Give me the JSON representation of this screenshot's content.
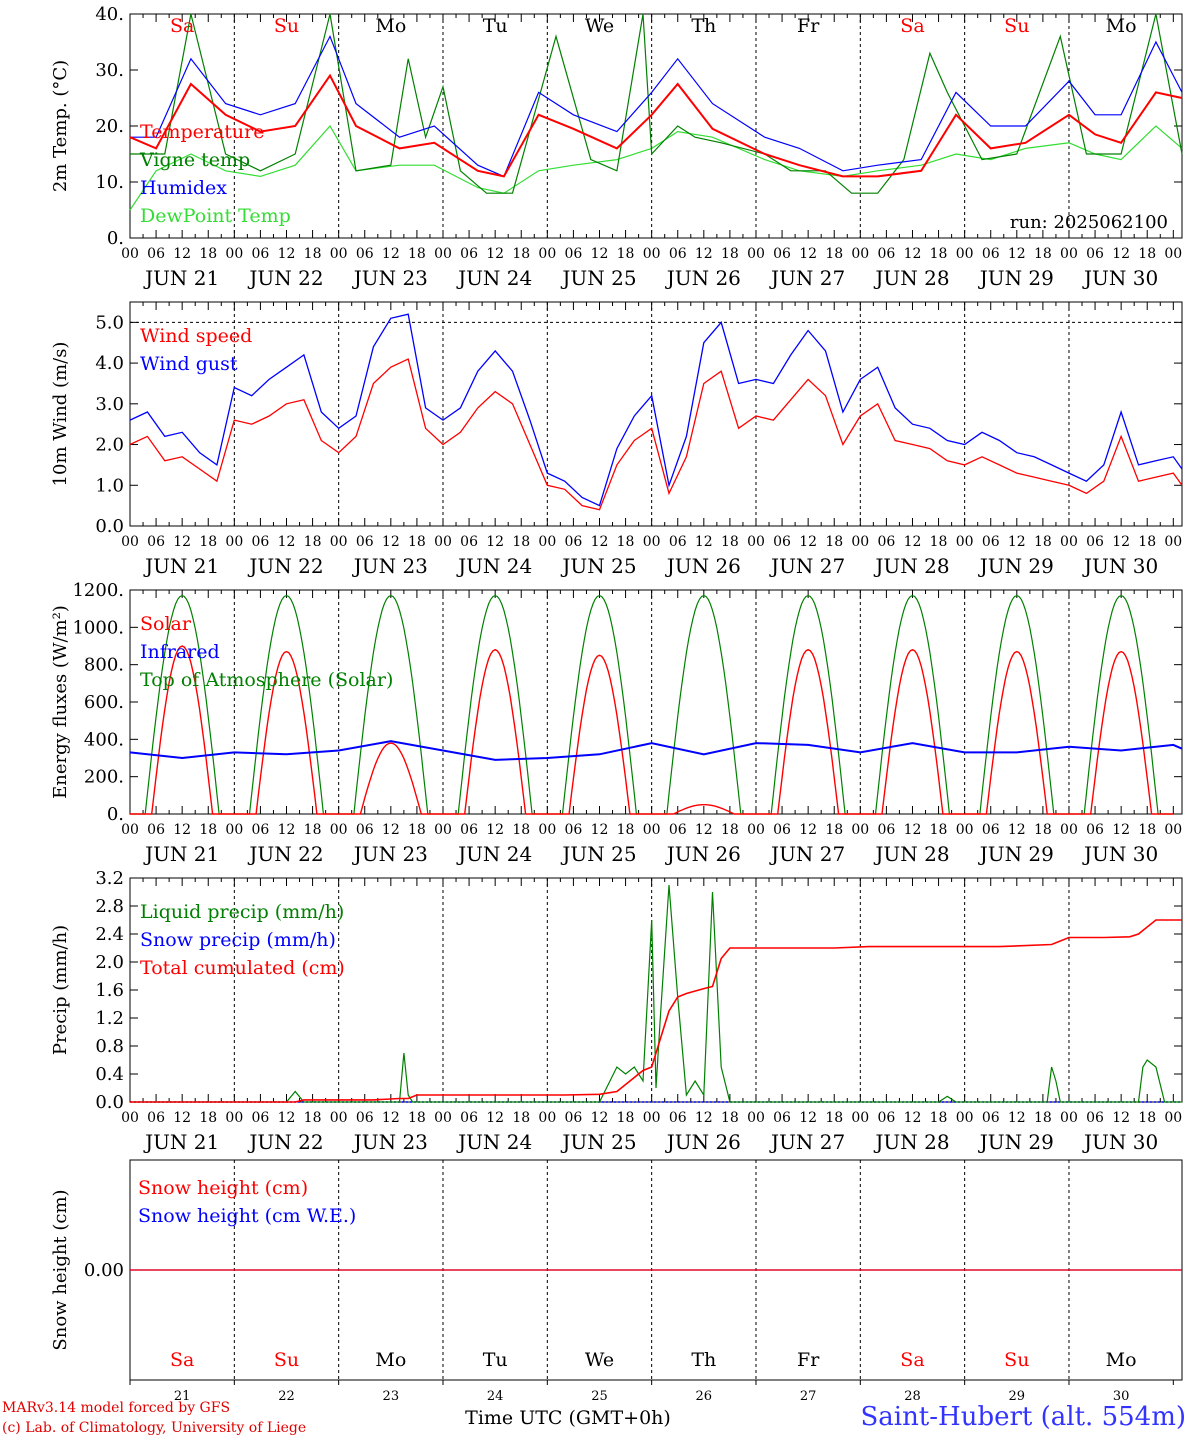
{
  "station": "Saint-Hubert (alt. 554m)",
  "credits": [
    "MARv3.14 model forced by GFS",
    "(c) Lab. of Climatology, University of Liege"
  ],
  "run_label": "run: 2025062100",
  "time_axis_label": "Time UTC (GMT+0h)",
  "hour_ticks": [
    "00",
    "06",
    "12",
    "18"
  ],
  "day_labels": [
    "JUN 21",
    "JUN 22",
    "JUN 23",
    "JUN 24",
    "JUN 25",
    "JUN 26",
    "JUN 27",
    "JUN 28",
    "JUN 29",
    "JUN 30"
  ],
  "weekdays": [
    "Sa",
    "Su",
    "Mo",
    "Tu",
    "We",
    "Th",
    "Fr",
    "Sa",
    "Su",
    "Mo"
  ],
  "day_numbers": [
    "21",
    "22",
    "23",
    "24",
    "25",
    "26",
    "27",
    "28",
    "29",
    "30"
  ],
  "colors": {
    "red": "#ff0000",
    "green": "#008000",
    "blue": "#0000ff",
    "lightgreen": "#33dd33",
    "weekend": "#ff0000",
    "weekday": "#000000"
  },
  "chart_data": [
    {
      "type": "line",
      "ylabel": "2m Temp. (°C)",
      "ylim": [
        0,
        40
      ],
      "yticks": [
        "0.",
        "10.",
        "20.",
        "30.",
        "40."
      ],
      "x_unit": "hours since JUN 21 00 UTC",
      "series": [
        {
          "name": "Temperature",
          "color": "red",
          "x": [
            0,
            6,
            14,
            22,
            30,
            38,
            46,
            52,
            62,
            70,
            80,
            86,
            94,
            102,
            112,
            120,
            126,
            134,
            146,
            154,
            164,
            172,
            182,
            190,
            198,
            206,
            216,
            222,
            228,
            236,
            242
          ],
          "y": [
            18,
            16,
            27.5,
            22,
            19,
            20,
            29,
            20,
            16,
            17,
            12,
            11,
            22,
            19.5,
            16,
            22,
            27.5,
            19.5,
            15,
            13,
            11,
            11,
            12,
            22,
            16,
            17,
            22,
            18.5,
            17,
            26,
            25
          ]
        },
        {
          "name": "Vigne temp",
          "color": "green",
          "x": [
            0,
            8,
            14,
            22,
            30,
            38,
            46,
            52,
            60,
            64,
            68,
            72,
            76,
            82,
            88,
            98,
            106,
            112,
            118,
            120,
            126,
            130,
            136,
            146,
            152,
            160,
            166,
            172,
            178,
            184,
            188,
            196,
            204,
            214,
            220,
            228,
            236,
            242
          ],
          "y": [
            15,
            15,
            40,
            15,
            12,
            15,
            40,
            12,
            13,
            32,
            18,
            27,
            12,
            8,
            8,
            36,
            14,
            12,
            40,
            15,
            20,
            18,
            17,
            15,
            12,
            12,
            8,
            8,
            14,
            33,
            26,
            14,
            15,
            36,
            15,
            15,
            40,
            15
          ],
          "extra_points": [
            [
              163,
              8
            ],
            [
              183,
              30
            ],
            [
              218,
              15
            ],
            [
              229,
              20
            ],
            [
              232,
              40
            ],
            [
              240,
              25
            ]
          ]
        },
        {
          "name": "Humidex",
          "color": "blue",
          "x": [
            0,
            6,
            14,
            22,
            30,
            38,
            46,
            52,
            62,
            70,
            80,
            86,
            94,
            102,
            112,
            120,
            126,
            134,
            146,
            154,
            164,
            172,
            182,
            190,
            198,
            206,
            216,
            222,
            228,
            236,
            242
          ],
          "y": [
            18,
            18,
            32,
            24,
            22,
            24,
            36,
            24,
            18,
            20,
            13,
            11,
            26,
            22,
            19,
            26,
            32,
            24,
            18,
            16,
            12,
            13,
            14,
            26,
            20,
            20,
            28,
            22,
            22,
            35,
            26
          ]
        },
        {
          "name": "DewPoint Temp",
          "color": "lightgreen",
          "x": [
            0,
            6,
            14,
            22,
            30,
            38,
            46,
            52,
            62,
            70,
            80,
            86,
            94,
            102,
            112,
            120,
            126,
            134,
            146,
            154,
            164,
            172,
            182,
            190,
            198,
            206,
            216,
            222,
            228,
            236,
            242
          ],
          "y": [
            5,
            12,
            15,
            12,
            11,
            13,
            20,
            12,
            13,
            13,
            9,
            8,
            12,
            13,
            14,
            16,
            19,
            18,
            14,
            12,
            11,
            12,
            13,
            15,
            14,
            16,
            17,
            15,
            14,
            20,
            16
          ]
        }
      ]
    },
    {
      "type": "line",
      "ylabel": "10m Wind (m/s)",
      "ylim": [
        0,
        5.5
      ],
      "yticks": [
        "0.0",
        "1.0",
        "2.0",
        "3.0",
        "4.0",
        "5.0"
      ],
      "ref_line": 5.0,
      "series": [
        {
          "name": "Wind speed",
          "color": "red",
          "x": [
            0,
            4,
            8,
            12,
            16,
            20,
            24,
            28,
            32,
            36,
            40,
            44,
            48,
            52,
            56,
            60,
            64,
            68,
            72,
            76,
            80,
            84,
            88,
            92,
            96,
            100,
            104,
            108,
            112,
            116,
            120,
            124,
            128,
            132,
            136,
            140,
            144,
            148,
            152,
            156,
            160,
            164,
            168,
            172,
            176,
            180,
            184,
            188,
            192,
            196,
            200,
            204,
            208,
            212,
            216,
            220,
            224,
            228,
            232,
            236,
            240,
            242
          ],
          "y": [
            2.0,
            2.2,
            1.6,
            1.7,
            1.4,
            1.1,
            2.6,
            2.5,
            2.7,
            3.0,
            3.1,
            2.1,
            1.8,
            2.2,
            3.5,
            3.9,
            4.1,
            2.4,
            2.0,
            2.3,
            2.9,
            3.3,
            3.0,
            2.0,
            1.0,
            0.9,
            0.5,
            0.4,
            1.5,
            2.1,
            2.4,
            0.8,
            1.7,
            3.5,
            3.8,
            2.4,
            2.7,
            2.6,
            3.1,
            3.6,
            3.2,
            2.0,
            2.7,
            3.0,
            2.1,
            2.0,
            1.9,
            1.6,
            1.5,
            1.7,
            1.5,
            1.3,
            1.2,
            1.1,
            1.0,
            0.8,
            1.1,
            2.2,
            1.1,
            1.2,
            1.3,
            1.0
          ]
        },
        {
          "name": "Wind gust",
          "color": "blue",
          "x": [
            0,
            4,
            8,
            12,
            16,
            20,
            24,
            28,
            32,
            36,
            40,
            44,
            48,
            52,
            56,
            60,
            64,
            68,
            72,
            76,
            80,
            84,
            88,
            92,
            96,
            100,
            104,
            108,
            112,
            116,
            120,
            124,
            128,
            132,
            136,
            140,
            144,
            148,
            152,
            156,
            160,
            164,
            168,
            172,
            176,
            180,
            184,
            188,
            192,
            196,
            200,
            204,
            208,
            212,
            216,
            220,
            224,
            228,
            232,
            236,
            240,
            242
          ],
          "y": [
            2.6,
            2.8,
            2.2,
            2.3,
            1.8,
            1.5,
            3.4,
            3.2,
            3.6,
            3.9,
            4.2,
            2.8,
            2.4,
            2.7,
            4.4,
            5.1,
            5.2,
            2.9,
            2.6,
            2.9,
            3.8,
            4.3,
            3.8,
            2.6,
            1.3,
            1.1,
            0.7,
            0.5,
            1.9,
            2.7,
            3.2,
            1.0,
            2.2,
            4.5,
            5.0,
            3.5,
            3.6,
            3.5,
            4.2,
            4.8,
            4.3,
            2.8,
            3.6,
            3.9,
            2.9,
            2.5,
            2.4,
            2.1,
            2.0,
            2.3,
            2.1,
            1.8,
            1.7,
            1.5,
            1.3,
            1.1,
            1.5,
            2.8,
            1.5,
            1.6,
            1.7,
            1.4
          ]
        }
      ]
    },
    {
      "type": "line",
      "ylabel": "Energy fluxes (W/m²)",
      "ylim": [
        0,
        1200
      ],
      "yticks": [
        "0.",
        "200.",
        "400.",
        "600.",
        "800.",
        "1000.",
        "1200."
      ],
      "series": [
        {
          "name": "Solar",
          "color": "red",
          "peaks": [
            900,
            870,
            380,
            880,
            850,
            50,
            880,
            880,
            870,
            870
          ]
        },
        {
          "name": "Infrared",
          "color": "blue",
          "x": [
            0,
            12,
            24,
            36,
            48,
            60,
            72,
            84,
            96,
            108,
            120,
            132,
            144,
            156,
            168,
            180,
            192,
            204,
            216,
            228,
            240,
            242
          ],
          "y": [
            330,
            300,
            330,
            320,
            340,
            390,
            340,
            290,
            300,
            320,
            380,
            320,
            380,
            370,
            330,
            380,
            330,
            330,
            360,
            340,
            370,
            350
          ]
        },
        {
          "name": "Top of Atmosphere (Solar)",
          "color": "green",
          "peak": 1170
        }
      ]
    },
    {
      "type": "line",
      "ylabel": "Precip (mm/h)",
      "ylim": [
        0,
        3.2
      ],
      "yticks": [
        "0.0",
        "0.4",
        "0.8",
        "1.2",
        "1.6",
        "2.0",
        "2.4",
        "2.8",
        "3.2"
      ],
      "series": [
        {
          "name": "Liquid precip (mm/h)",
          "color": "green",
          "x": [
            0,
            36,
            38,
            40,
            62,
            63,
            64,
            65,
            66,
            108,
            112,
            114,
            116,
            118,
            120,
            121,
            122,
            124,
            126,
            128,
            130,
            132,
            134,
            136,
            138,
            140,
            142,
            144,
            186,
            188,
            190,
            200,
            211,
            212,
            213,
            214,
            215,
            232,
            233,
            234,
            236,
            238,
            240,
            242
          ],
          "y": [
            0,
            0,
            0.15,
            0,
            0,
            0.7,
            0.1,
            0,
            0,
            0,
            0.5,
            0.4,
            0.5,
            0.3,
            2.6,
            0.2,
            1.2,
            3.1,
            1.5,
            0.1,
            0.3,
            0.1,
            3.0,
            0.5,
            0,
            0,
            0,
            0,
            0,
            0.08,
            0,
            0,
            0,
            0.5,
            0.3,
            0,
            0,
            0,
            0.5,
            0.6,
            0.5,
            0,
            0,
            0
          ]
        },
        {
          "name": "Snow precip (mm/h)",
          "color": "blue",
          "x": [
            0,
            242
          ],
          "y": [
            0,
            0
          ]
        },
        {
          "name": "Total cumulated (cm)",
          "color": "red",
          "x": [
            0,
            38,
            40,
            56,
            62,
            64,
            66,
            100,
            108,
            112,
            116,
            118,
            120,
            122,
            124,
            126,
            128,
            132,
            134,
            136,
            138,
            140,
            162,
            170,
            200,
            212,
            216,
            224,
            230,
            232,
            236,
            238,
            242
          ],
          "y": [
            0,
            0,
            0.03,
            0.03,
            0.05,
            0.05,
            0.1,
            0.1,
            0.11,
            0.15,
            0.35,
            0.45,
            0.5,
            0.9,
            1.3,
            1.5,
            1.55,
            1.62,
            1.65,
            2.05,
            2.2,
            2.2,
            2.2,
            2.22,
            2.22,
            2.25,
            2.35,
            2.35,
            2.36,
            2.4,
            2.6,
            2.6,
            2.6
          ]
        }
      ]
    },
    {
      "type": "line",
      "ylabel": "Snow height (cm)",
      "ylim": [
        -1,
        1
      ],
      "yticks": [
        "0.00"
      ],
      "series": [
        {
          "name": "Snow height (cm)",
          "color": "red",
          "x": [
            0,
            242
          ],
          "y": [
            0,
            0
          ]
        },
        {
          "name": "Snow height (cm W.E.)",
          "color": "blue",
          "x": [
            0,
            242
          ],
          "y": [
            0,
            0
          ]
        }
      ]
    }
  ]
}
